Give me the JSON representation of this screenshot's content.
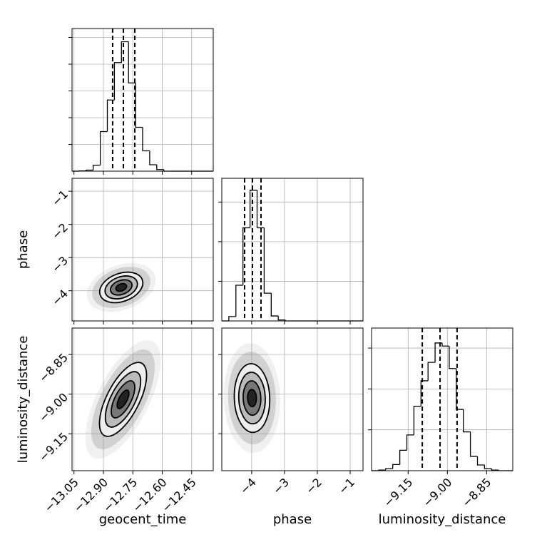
{
  "chart_data": [
    {
      "type": "histogram",
      "color": "#000000",
      "bins": [
        -13.06,
        -13.024,
        -12.988,
        -12.952,
        -12.916,
        -12.88,
        -12.844,
        -12.808,
        -12.772,
        -12.736,
        -12.7,
        -12.664,
        -12.628,
        -12.592,
        -12.556,
        -12.52,
        -12.484,
        -12.448,
        -12.412,
        -12.376,
        -12.34
      ],
      "values": [
        0,
        5,
        20,
        110,
        740,
        1330,
        2030,
        2420,
        1650,
        820,
        380,
        120,
        30,
        0,
        0,
        0,
        0,
        0,
        0,
        0
      ],
      "quantiles": [
        -12.853,
        -12.798,
        -12.74
      ],
      "xlim": [
        -13.06,
        -12.34
      ],
      "xticks": [
        -13.05,
        -12.9,
        -12.75,
        -12.6,
        -12.45
      ],
      "ylim": [
        0,
        2667
      ],
      "yticks": [
        500,
        1000,
        1500,
        2000,
        2500
      ],
      "grid": true
    },
    {
      "type": "density",
      "color": "#000000",
      "ylabel": "phase",
      "mean": [
        -12.809,
        -3.9
      ],
      "std": [
        0.055,
        0.23
      ],
      "corr": 0.3,
      "levels": [
        0.5,
        1,
        1.5,
        2
      ],
      "xlim": [
        -13.06,
        -12.34
      ],
      "xticks": [
        -13.05,
        -12.9,
        -12.75,
        -12.6,
        -12.45
      ],
      "ylim": [
        -4.91,
        -0.61
      ],
      "yticks": [
        {
          "value": -4,
          "label": "−4"
        },
        {
          "value": -3,
          "label": "−3"
        },
        {
          "value": -2,
          "label": "−2"
        },
        {
          "value": -1,
          "label": "−1"
        }
      ],
      "grid": true
    },
    {
      "type": "histogram",
      "color": "#000000",
      "bins": [
        -4.91,
        -4.695,
        -4.48,
        -4.265,
        -4.05,
        -3.835,
        -3.62,
        -3.405,
        -3.19,
        -2.975,
        -2.76,
        -2.545,
        -2.33,
        -2.115,
        -1.9,
        -1.685,
        -1.47,
        -1.255,
        -1.04,
        -0.825,
        -0.61
      ],
      "values": [
        0,
        220,
        1800,
        4700,
        6600,
        4700,
        1400,
        250,
        50,
        0,
        0,
        0,
        0,
        0,
        0,
        0,
        0,
        0,
        0,
        0
      ],
      "quantiles": [
        -4.215,
        -3.976,
        -3.716
      ],
      "xlim": [
        -4.91,
        -0.61
      ],
      "xticks": [
        -4,
        -3,
        -2,
        -1
      ],
      "ylim": [
        0,
        7200
      ],
      "yticks": [
        2000,
        4000,
        6000
      ],
      "grid": true
    },
    {
      "type": "density",
      "color": "#000000",
      "xlabel": "geocent_time",
      "ylabel": "luminosity_distance",
      "mean": [
        -12.8,
        -9.02
      ],
      "std": [
        0.06,
        0.07
      ],
      "corr": 0.65,
      "levels": [
        0.5,
        1,
        1.5,
        2
      ],
      "xlim": [
        -13.06,
        -12.34
      ],
      "xticks": [
        {
          "value": -13.05,
          "label": "−13.05"
        },
        {
          "value": -12.9,
          "label": "−12.90"
        },
        {
          "value": -12.75,
          "label": "−12.75"
        },
        {
          "value": -12.6,
          "label": "−12.60"
        },
        {
          "value": -12.45,
          "label": "−12.45"
        }
      ],
      "ylim": [
        -9.29,
        -8.75
      ],
      "yticks": [
        {
          "value": -9.15,
          "label": "−9.15"
        },
        {
          "value": -9,
          "label": "−9.00"
        },
        {
          "value": -8.85,
          "label": "−8.85"
        }
      ],
      "grid": true
    },
    {
      "type": "density",
      "color": "#000000",
      "xlabel": "phase",
      "mean": [
        -3.99,
        -9.015
      ],
      "std": [
        0.27,
        0.065
      ],
      "corr": -0.05,
      "levels": [
        0.5,
        1,
        1.5,
        2
      ],
      "xlim": [
        -4.91,
        -0.61
      ],
      "xticks": [
        {
          "value": -4,
          "label": "−4"
        },
        {
          "value": -3,
          "label": "−3"
        },
        {
          "value": -2,
          "label": "−2"
        },
        {
          "value": -1,
          "label": "−1"
        }
      ],
      "ylim": [
        -9.29,
        -8.75
      ],
      "yticks": [
        -9.15,
        -9,
        -8.85
      ],
      "grid": true
    },
    {
      "type": "histogram",
      "color": "#000000",
      "xlabel": "luminosity_distance",
      "bins": [
        -9.29,
        -9.263,
        -9.236,
        -9.209,
        -9.182,
        -9.155,
        -9.128,
        -9.101,
        -9.074,
        -9.047,
        -9.02,
        -8.993,
        -8.966,
        -8.939,
        -8.912,
        -8.885,
        -8.858,
        -8.831,
        -8.804,
        -8.777,
        -8.75
      ],
      "values": [
        0,
        30,
        100,
        300,
        1000,
        1750,
        3150,
        4400,
        5300,
        6250,
        6100,
        5000,
        3000,
        1900,
        700,
        280,
        100,
        30,
        0,
        0
      ],
      "quantiles": [
        -9.096,
        -9.028,
        -8.963
      ],
      "xlim": [
        -9.29,
        -8.75
      ],
      "xticks": [
        {
          "value": -9.15,
          "label": "−9.15"
        },
        {
          "value": -9,
          "label": "−9.00"
        },
        {
          "value": -8.85,
          "label": "−8.85"
        }
      ],
      "ylim": [
        0,
        6980
      ],
      "yticks": [
        2000,
        4000,
        6000
      ],
      "grid": true
    }
  ]
}
